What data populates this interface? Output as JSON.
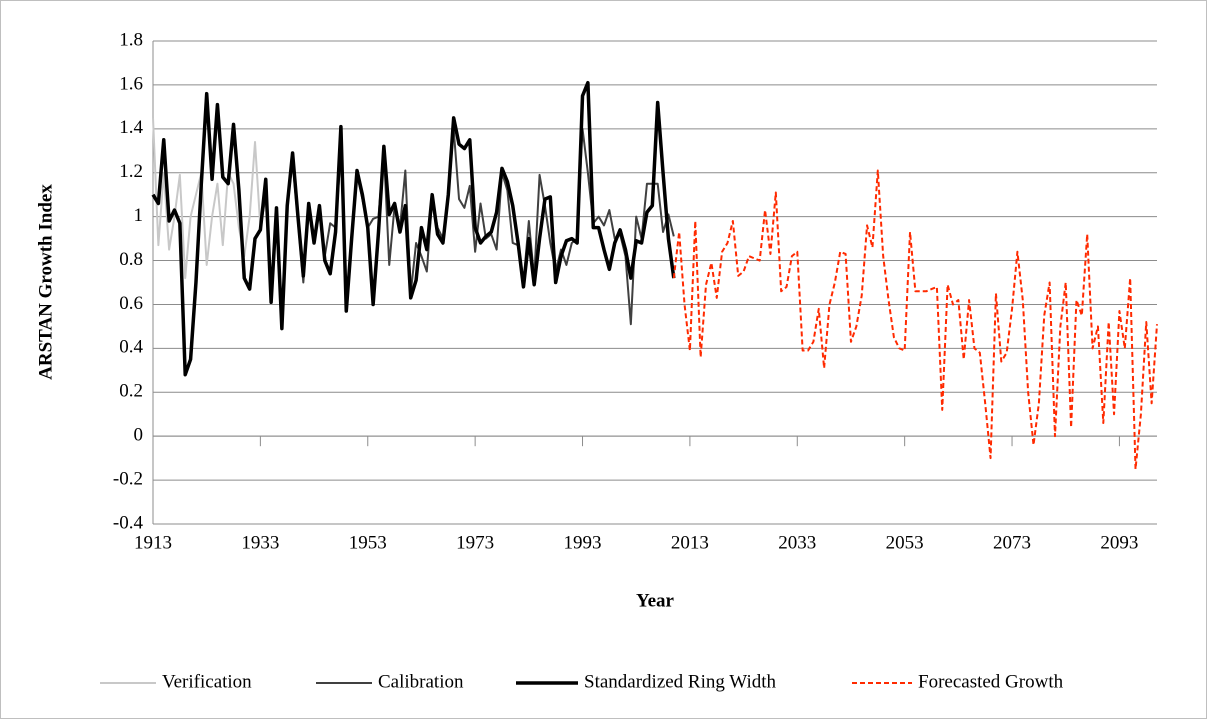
{
  "chart_data": {
    "type": "line",
    "y_label": "ARSTAN Growth Index",
    "x_label": "Year",
    "xlim": [
      1913,
      2100
    ],
    "xticks": [
      1913,
      1933,
      1953,
      1973,
      1993,
      2013,
      2033,
      2053,
      2073,
      2093
    ],
    "ylim": [
      -0.4,
      1.8
    ],
    "yticks": [
      -0.4,
      -0.2,
      0,
      0.2,
      0.4,
      0.6,
      0.8,
      1,
      1.2,
      1.4,
      1.6,
      1.8
    ],
    "grid": true,
    "legend": "bottom",
    "series": [
      {
        "name": "Verification",
        "color": "#c8c8c8",
        "width": 2,
        "style": "solid",
        "x": [
          1913,
          1914,
          1915,
          1916,
          1917,
          1918,
          1919,
          1920,
          1921,
          1922,
          1923,
          1924,
          1925,
          1926,
          1927,
          1928,
          1929,
          1930,
          1931,
          1932,
          1933
        ],
        "values": [
          1.45,
          0.87,
          1.2,
          0.85,
          1.0,
          1.19,
          0.72,
          1.0,
          1.1,
          1.2,
          0.78,
          1.0,
          1.15,
          0.87,
          1.2,
          1.15,
          0.95,
          0.82,
          1.0,
          1.34,
          0.95
        ]
      },
      {
        "name": "Calibration",
        "color": "#404040",
        "width": 2,
        "style": "solid",
        "x": [
          1933,
          1934,
          1935,
          1936,
          1937,
          1938,
          1939,
          1940,
          1941,
          1942,
          1943,
          1944,
          1945,
          1946,
          1947,
          1948,
          1949,
          1950,
          1951,
          1952,
          1953,
          1954,
          1955,
          1956,
          1957,
          1958,
          1959,
          1960,
          1961,
          1962,
          1963,
          1964,
          1965,
          1966,
          1967,
          1968,
          1969,
          1970,
          1971,
          1972,
          1973,
          1974,
          1975,
          1976,
          1977,
          1978,
          1979,
          1980,
          1981,
          1982,
          1983,
          1984,
          1985,
          1986,
          1987,
          1988,
          1989,
          1990,
          1991,
          1992,
          1993,
          1994,
          1995,
          1996,
          1997,
          1998,
          1999,
          2000,
          2001,
          2002,
          2003,
          2004,
          2005,
          2006,
          2007,
          2008,
          2009,
          2010
        ],
        "values": [
          0.94,
          1.1,
          0.63,
          1.0,
          0.52,
          1.05,
          1.25,
          0.98,
          0.7,
          1.04,
          0.9,
          1.02,
          0.82,
          0.97,
          0.95,
          1.3,
          0.6,
          0.92,
          1.19,
          1.08,
          0.95,
          0.99,
          1.0,
          1.3,
          0.78,
          1.05,
          0.95,
          1.21,
          0.65,
          0.88,
          0.82,
          0.75,
          1.08,
          0.95,
          0.9,
          1.1,
          1.4,
          1.08,
          1.04,
          1.14,
          0.84,
          1.06,
          0.9,
          0.92,
          0.85,
          1.2,
          1.12,
          0.88,
          0.87,
          0.7,
          0.98,
          0.72,
          1.19,
          1.05,
          0.88,
          0.75,
          0.85,
          0.78,
          0.88,
          0.9,
          1.4,
          1.2,
          0.97,
          1.0,
          0.96,
          1.03,
          0.9,
          0.92,
          0.82,
          0.51,
          1.0,
          0.9,
          1.15,
          1.15,
          1.15,
          0.93,
          1.01,
          0.91
        ]
      },
      {
        "name": "Standardized Ring Width",
        "color": "#000000",
        "width": 3.5,
        "style": "solid",
        "x": [
          1913,
          1914,
          1915,
          1916,
          1917,
          1918,
          1919,
          1920,
          1921,
          1922,
          1923,
          1924,
          1925,
          1926,
          1927,
          1928,
          1929,
          1930,
          1931,
          1932,
          1933,
          1934,
          1935,
          1936,
          1937,
          1938,
          1939,
          1940,
          1941,
          1942,
          1943,
          1944,
          1945,
          1946,
          1947,
          1948,
          1949,
          1950,
          1951,
          1952,
          1953,
          1954,
          1955,
          1956,
          1957,
          1958,
          1959,
          1960,
          1961,
          1962,
          1963,
          1964,
          1965,
          1966,
          1967,
          1968,
          1969,
          1970,
          1971,
          1972,
          1973,
          1974,
          1975,
          1976,
          1977,
          1978,
          1979,
          1980,
          1981,
          1982,
          1983,
          1984,
          1985,
          1986,
          1987,
          1988,
          1989,
          1990,
          1991,
          1992,
          1993,
          1994,
          1995,
          1996,
          1997,
          1998,
          1999,
          2000,
          2001,
          2002,
          2003,
          2004,
          2005,
          2006,
          2007,
          2008,
          2009,
          2010
        ],
        "values": [
          1.1,
          1.06,
          1.35,
          0.98,
          1.03,
          0.97,
          0.28,
          0.35,
          0.7,
          1.15,
          1.56,
          1.17,
          1.51,
          1.18,
          1.15,
          1.42,
          1.12,
          0.72,
          0.67,
          0.9,
          0.94,
          1.17,
          0.61,
          1.04,
          0.49,
          1.05,
          1.29,
          1.0,
          0.73,
          1.06,
          0.88,
          1.05,
          0.8,
          0.74,
          0.93,
          1.41,
          0.57,
          0.9,
          1.21,
          1.1,
          0.95,
          0.6,
          0.93,
          1.32,
          1.01,
          1.06,
          0.93,
          1.05,
          0.63,
          0.71,
          0.95,
          0.85,
          1.1,
          0.92,
          0.88,
          1.1,
          1.45,
          1.33,
          1.31,
          1.35,
          0.95,
          0.88,
          0.91,
          0.93,
          1.02,
          1.22,
          1.16,
          1.05,
          0.88,
          0.68,
          0.9,
          0.69,
          0.9,
          1.08,
          1.09,
          0.7,
          0.82,
          0.89,
          0.9,
          0.88,
          1.55,
          1.61,
          0.95,
          0.95,
          0.85,
          0.76,
          0.88,
          0.94,
          0.85,
          0.72,
          0.89,
          0.88,
          1.02,
          1.05,
          1.52,
          1.2,
          0.9,
          0.72
        ]
      },
      {
        "name": "Forecasted Growth",
        "color": "#ff2a00",
        "width": 2,
        "style": "dashed",
        "x": [
          2010,
          2011,
          2012,
          2013,
          2014,
          2015,
          2016,
          2017,
          2018,
          2019,
          2020,
          2021,
          2022,
          2023,
          2024,
          2025,
          2026,
          2027,
          2028,
          2029,
          2030,
          2031,
          2032,
          2033,
          2034,
          2035,
          2036,
          2037,
          2038,
          2039,
          2040,
          2041,
          2042,
          2043,
          2044,
          2045,
          2046,
          2047,
          2048,
          2049,
          2050,
          2051,
          2052,
          2053,
          2054,
          2055,
          2056,
          2057,
          2058,
          2059,
          2060,
          2061,
          2062,
          2063,
          2064,
          2065,
          2066,
          2067,
          2068,
          2069,
          2070,
          2071,
          2072,
          2073,
          2074,
          2075,
          2076,
          2077,
          2078,
          2079,
          2080,
          2081,
          2082,
          2083,
          2084,
          2085,
          2086,
          2087,
          2088,
          2089,
          2090,
          2091,
          2092,
          2093,
          2094,
          2095,
          2096,
          2097,
          2098,
          2099,
          2100
        ],
        "values": [
          0.72,
          0.93,
          0.6,
          0.39,
          0.98,
          0.36,
          0.69,
          0.79,
          0.63,
          0.84,
          0.88,
          0.98,
          0.73,
          0.75,
          0.82,
          0.81,
          0.8,
          1.03,
          0.83,
          1.11,
          0.66,
          0.68,
          0.82,
          0.84,
          0.39,
          0.39,
          0.43,
          0.58,
          0.31,
          0.6,
          0.7,
          0.84,
          0.83,
          0.43,
          0.5,
          0.64,
          0.96,
          0.86,
          1.21,
          0.82,
          0.62,
          0.45,
          0.4,
          0.39,
          0.93,
          0.66,
          0.66,
          0.66,
          0.67,
          0.68,
          0.12,
          0.69,
          0.6,
          0.62,
          0.35,
          0.62,
          0.4,
          0.38,
          0.15,
          -0.1,
          0.65,
          0.34,
          0.38,
          0.58,
          0.84,
          0.62,
          0.2,
          -0.04,
          0.15,
          0.55,
          0.7,
          0.0,
          0.5,
          0.7,
          0.04,
          0.62,
          0.55,
          0.92,
          0.4,
          0.5,
          0.06,
          0.52,
          0.1,
          0.57,
          0.4,
          0.72,
          -0.15,
          0.1,
          0.52,
          0.15,
          0.51
        ]
      }
    ]
  }
}
